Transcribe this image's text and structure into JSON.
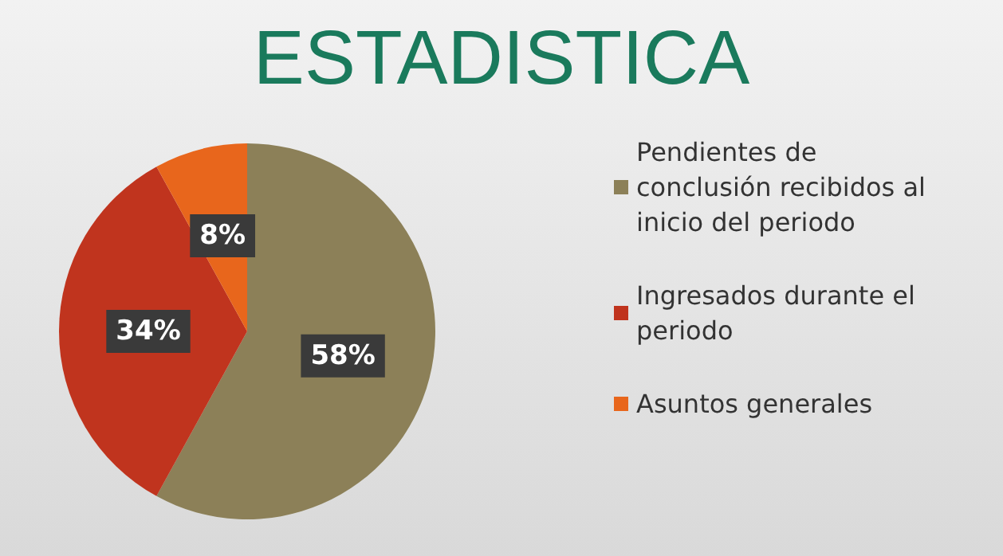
{
  "chart_data": {
    "type": "pie",
    "title": "ESTADISTICA",
    "categories": [
      "Pendientes de conclusión recibidos al inicio del periodo",
      "Ingresados durante el periodo",
      "Asuntos generales"
    ],
    "values": [
      58,
      34,
      8
    ],
    "colors": [
      "#8c8058",
      "#c0341e",
      "#e8661c"
    ],
    "value_labels": [
      "58%",
      "34%",
      "8%"
    ],
    "legend": "right"
  }
}
